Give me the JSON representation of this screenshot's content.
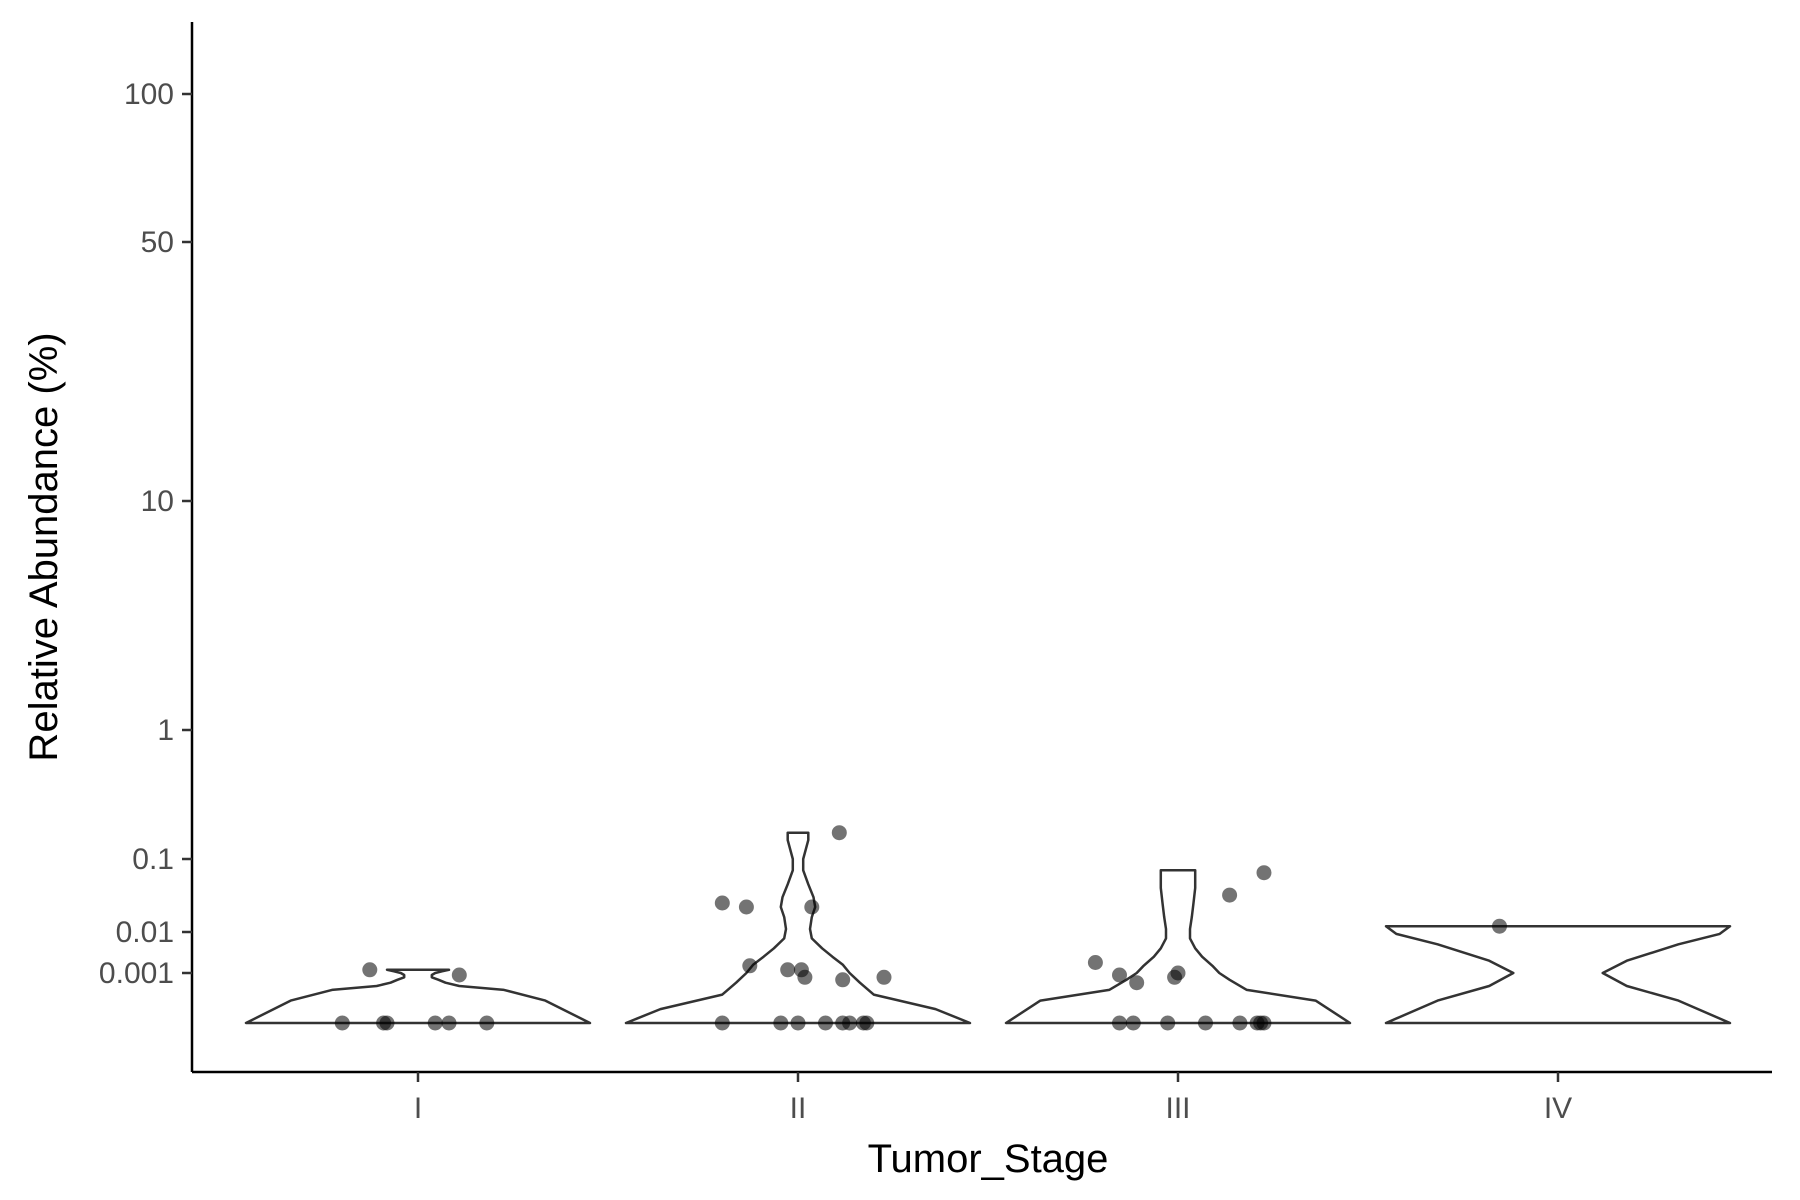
{
  "chart_data": {
    "type": "violin",
    "title": "",
    "xlabel": "Tumor_Stage",
    "ylabel": "Relative Abundance (%)",
    "y_scale": "pseudo-log",
    "y_ticks": [
      0.001,
      0.01,
      0.1,
      1,
      10,
      50,
      100
    ],
    "y_tick_labels": [
      "0.001",
      "0.01",
      "0.1",
      "1",
      "10",
      "50",
      "100"
    ],
    "categories": [
      "I",
      "II",
      "III",
      "IV"
    ],
    "grid": false,
    "legend": "none",
    "colors": {
      "axis": "#000000",
      "violin_stroke": "#333333",
      "point": "#000000",
      "tick_label": "#4d4d4d"
    },
    "groups": [
      {
        "category": "I",
        "points": [
          {
            "x": -0.22,
            "y": 0
          },
          {
            "x": -0.1,
            "y": 0
          },
          {
            "x": -0.09,
            "y": 0
          },
          {
            "x": 0.05,
            "y": 0
          },
          {
            "x": 0.09,
            "y": 0
          },
          {
            "x": 0.2,
            "y": 0
          },
          {
            "x": -0.14,
            "y": 0.0012
          },
          {
            "x": 0.12,
            "y": 0.0009
          }
        ],
        "violin": [
          [
            0,
            0.5
          ],
          [
            0.0002,
            0.37
          ],
          [
            0.0004,
            0.25
          ],
          [
            0.0005,
            0.12
          ],
          [
            0.0006,
            0.08
          ],
          [
            0.0007,
            0.06
          ],
          [
            0.0008,
            0.04
          ],
          [
            0.0009,
            0.04
          ],
          [
            0.001,
            0.05
          ],
          [
            0.0011,
            0.07
          ],
          [
            0.0012,
            0.09
          ]
        ]
      },
      {
        "category": "II",
        "points": [
          {
            "x": -0.22,
            "y": 0
          },
          {
            "x": -0.05,
            "y": 0
          },
          {
            "x": 0.0,
            "y": 0
          },
          {
            "x": 0.08,
            "y": 0
          },
          {
            "x": 0.13,
            "y": 0
          },
          {
            "x": 0.15,
            "y": 0
          },
          {
            "x": 0.19,
            "y": 0
          },
          {
            "x": 0.2,
            "y": 0
          },
          {
            "x": -0.14,
            "y": 0.0015
          },
          {
            "x": -0.03,
            "y": 0.0012
          },
          {
            "x": 0.01,
            "y": 0.0012
          },
          {
            "x": 0.02,
            "y": 0.0008
          },
          {
            "x": 0.13,
            "y": 0.0007
          },
          {
            "x": 0.25,
            "y": 0.0008
          },
          {
            "x": -0.22,
            "y": 0.025
          },
          {
            "x": -0.15,
            "y": 0.022
          },
          {
            "x": 0.04,
            "y": 0.022
          },
          {
            "x": 0.12,
            "y": 0.16
          }
        ],
        "violin": [
          [
            0,
            0.5
          ],
          [
            0.0001,
            0.4
          ],
          [
            0.0003,
            0.22
          ],
          [
            0.0006,
            0.18
          ],
          [
            0.001,
            0.15
          ],
          [
            0.0016,
            0.13
          ],
          [
            0.0025,
            0.1
          ],
          [
            0.004,
            0.07
          ],
          [
            0.007,
            0.04
          ],
          [
            0.011,
            0.035
          ],
          [
            0.016,
            0.04
          ],
          [
            0.022,
            0.05
          ],
          [
            0.03,
            0.045
          ],
          [
            0.045,
            0.03
          ],
          [
            0.07,
            0.015
          ],
          [
            0.1,
            0.015
          ],
          [
            0.14,
            0.03
          ],
          [
            0.16,
            0.03
          ]
        ]
      },
      {
        "category": "III",
        "points": [
          {
            "x": -0.17,
            "y": 0
          },
          {
            "x": -0.13,
            "y": 0
          },
          {
            "x": -0.03,
            "y": 0
          },
          {
            "x": 0.08,
            "y": 0
          },
          {
            "x": 0.18,
            "y": 0
          },
          {
            "x": 0.23,
            "y": 0
          },
          {
            "x": 0.24,
            "y": 0
          },
          {
            "x": 0.25,
            "y": 0
          },
          {
            "x": -0.12,
            "y": 0.0006
          },
          {
            "x": -0.17,
            "y": 0.0009
          },
          {
            "x": -0.01,
            "y": 0.0008
          },
          {
            "x": 0.0,
            "y": 0.001
          },
          {
            "x": -0.24,
            "y": 0.0018
          },
          {
            "x": 0.15,
            "y": 0.032
          },
          {
            "x": 0.25,
            "y": 0.065
          }
        ],
        "violin": [
          [
            0,
            0.5
          ],
          [
            0.0002,
            0.4
          ],
          [
            0.0004,
            0.2
          ],
          [
            0.0007,
            0.15
          ],
          [
            0.001,
            0.12
          ],
          [
            0.0015,
            0.1
          ],
          [
            0.0025,
            0.07
          ],
          [
            0.004,
            0.05
          ],
          [
            0.007,
            0.035
          ],
          [
            0.011,
            0.035
          ],
          [
            0.016,
            0.04
          ],
          [
            0.025,
            0.045
          ],
          [
            0.04,
            0.05
          ],
          [
            0.06,
            0.05
          ],
          [
            0.07,
            0.05
          ]
        ]
      },
      {
        "category": "IV",
        "points": [
          {
            "x": -0.17,
            "y": 0.012
          }
        ],
        "violin": [
          [
            0,
            0.5
          ],
          [
            0.0002,
            0.35
          ],
          [
            0.0005,
            0.2
          ],
          [
            0.001,
            0.13
          ],
          [
            0.002,
            0.2
          ],
          [
            0.005,
            0.35
          ],
          [
            0.009,
            0.47
          ],
          [
            0.012,
            0.5
          ]
        ]
      }
    ]
  }
}
